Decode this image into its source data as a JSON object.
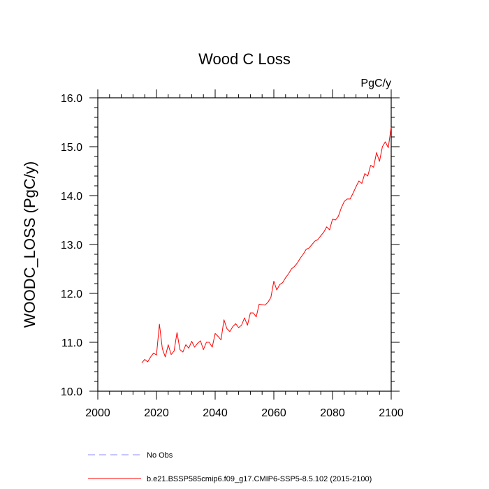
{
  "chart_data": {
    "type": "line",
    "title": "Wood C Loss",
    "units": "PgC/y",
    "ylabel": "WOODC_LOSS  (PgC/y)",
    "xlabel": "",
    "xlim": [
      2000,
      2100
    ],
    "ylim": [
      10.0,
      16.0
    ],
    "x_ticks": [
      2000,
      2020,
      2040,
      2060,
      2080,
      2100
    ],
    "x_tick_labels": [
      "2000",
      "2020",
      "2040",
      "2060",
      "2080",
      "2100"
    ],
    "y_ticks": [
      10.0,
      11.0,
      12.0,
      13.0,
      14.0,
      15.0,
      16.0
    ],
    "y_tick_labels": [
      "10.0",
      "11.0",
      "12.0",
      "13.0",
      "14.0",
      "15.0",
      "16.0"
    ],
    "series": [
      {
        "name": "b.e21.BSSP585cmip6.f09_g17.CMIP6-SSP5-8.5.102 (2015-2100)",
        "color": "#ff0000",
        "dash": "solid",
        "x": [
          2015,
          2016,
          2017,
          2018,
          2019,
          2020,
          2021,
          2022,
          2023,
          2024,
          2025,
          2026,
          2027,
          2028,
          2029,
          2030,
          2031,
          2032,
          2033,
          2034,
          2035,
          2036,
          2037,
          2038,
          2039,
          2040,
          2041,
          2042,
          2043,
          2044,
          2045,
          2046,
          2047,
          2048,
          2049,
          2050,
          2051,
          2052,
          2053,
          2054,
          2055,
          2056,
          2057,
          2058,
          2059,
          2060,
          2061,
          2062,
          2063,
          2064,
          2065,
          2066,
          2067,
          2068,
          2069,
          2070,
          2071,
          2072,
          2073,
          2074,
          2075,
          2076,
          2077,
          2078,
          2079,
          2080,
          2081,
          2082,
          2083,
          2084,
          2085,
          2086,
          2087,
          2088,
          2089,
          2090,
          2091,
          2092,
          2093,
          2094,
          2095,
          2096,
          2097,
          2098,
          2099,
          2100
        ],
        "values": [
          10.58,
          10.65,
          10.6,
          10.7,
          10.78,
          10.74,
          11.37,
          10.87,
          10.7,
          10.95,
          10.75,
          10.82,
          11.2,
          10.85,
          10.8,
          10.95,
          10.88,
          11.02,
          10.9,
          10.98,
          11.03,
          10.85,
          11.0,
          11.0,
          10.9,
          11.18,
          11.12,
          11.05,
          11.46,
          11.28,
          11.22,
          11.32,
          11.38,
          11.3,
          11.35,
          11.5,
          11.35,
          11.6,
          11.6,
          11.52,
          11.78,
          11.77,
          11.76,
          11.82,
          11.92,
          12.25,
          12.07,
          12.18,
          12.22,
          12.32,
          12.4,
          12.5,
          12.55,
          12.62,
          12.72,
          12.8,
          12.9,
          12.93,
          13.0,
          13.07,
          13.1,
          13.18,
          13.25,
          13.36,
          13.3,
          13.52,
          13.5,
          13.58,
          13.75,
          13.88,
          13.93,
          13.93,
          14.05,
          14.18,
          14.3,
          14.25,
          14.45,
          14.4,
          14.62,
          14.58,
          14.88,
          14.7,
          15.0,
          15.1,
          14.98,
          15.4
        ]
      }
    ],
    "legend": [
      {
        "label": "No Obs",
        "color": "#8c8cff",
        "dash": "dashed"
      },
      {
        "label": "b.e21.BSSP585cmip6.f09_g17.CMIP6-SSP5-8.5.102 (2015-2100)",
        "color": "#ff0000",
        "dash": "solid"
      }
    ]
  }
}
